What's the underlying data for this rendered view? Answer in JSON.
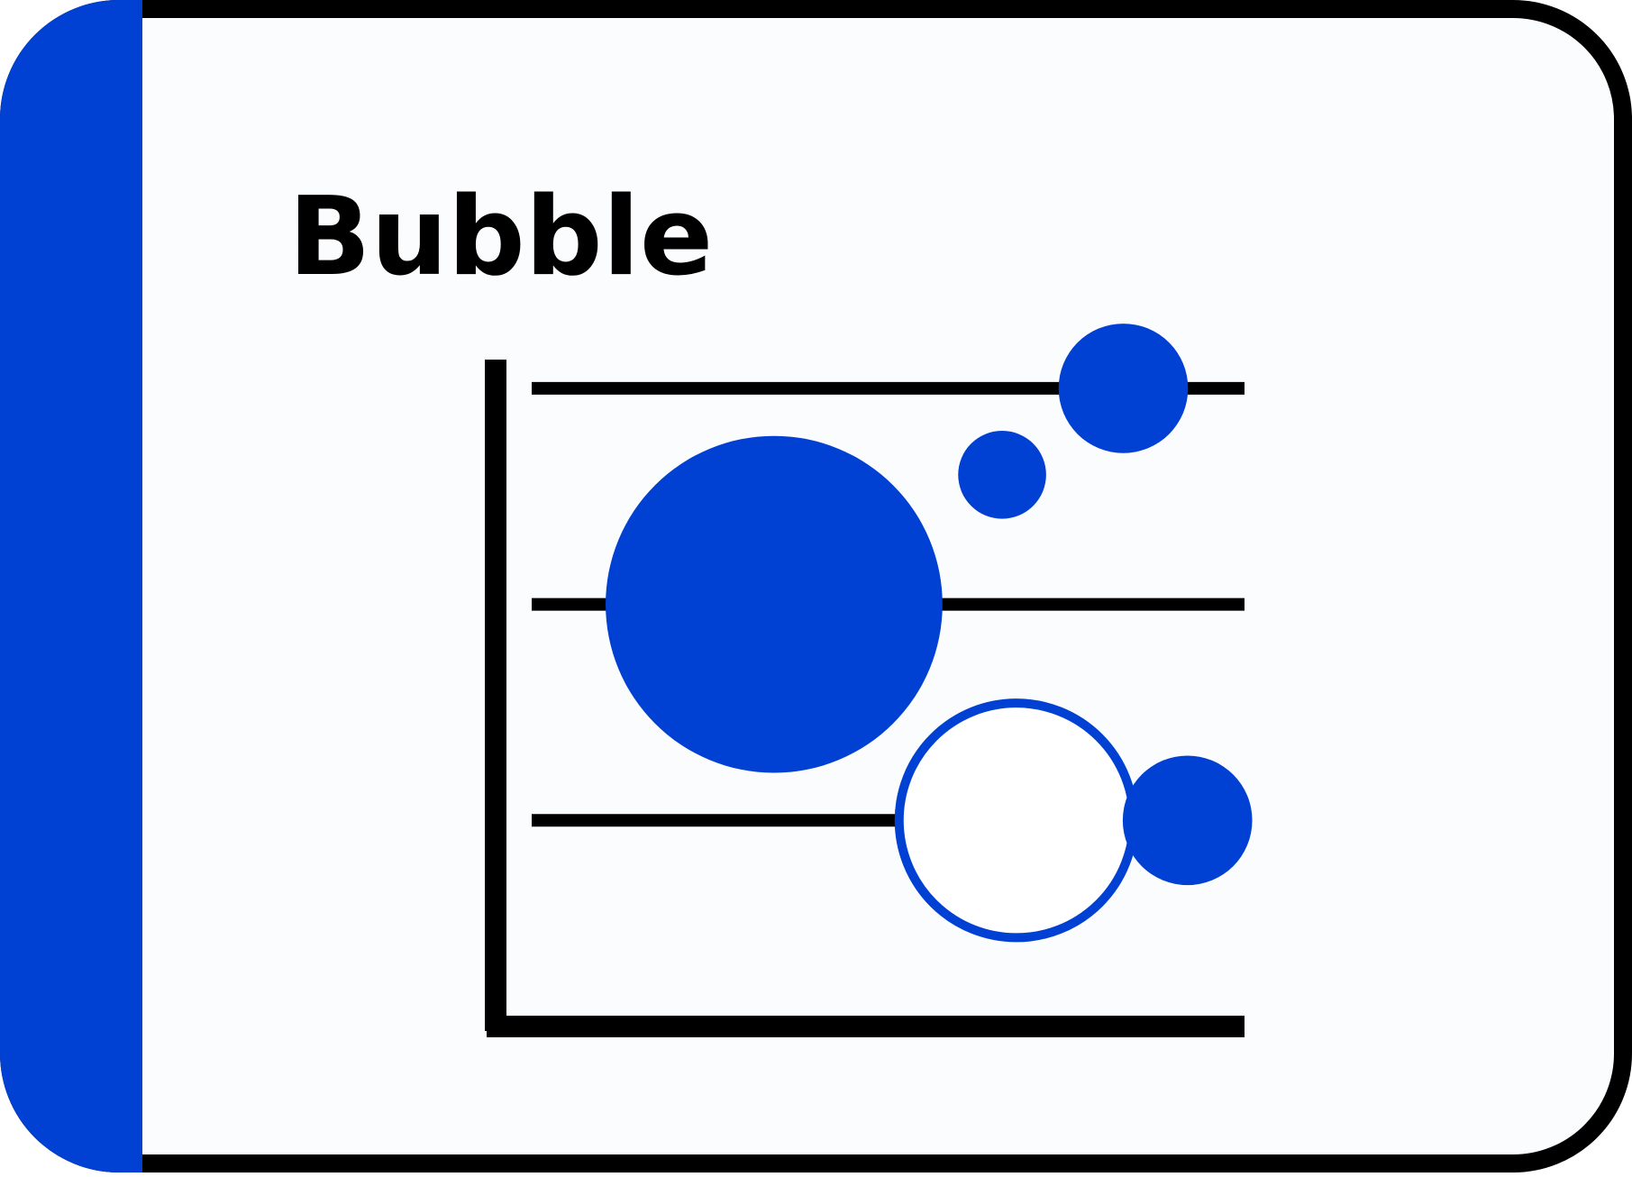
{
  "card": {
    "title": "Bubble"
  },
  "colors": {
    "accent": "#0041d3",
    "stroke": "#000000",
    "background": "#fbfcfd",
    "hollow_fill": "#ffffff"
  },
  "chart_data": {
    "type": "scatter",
    "title": "",
    "xlabel": "",
    "ylabel": "",
    "axis_tick_labels": "none",
    "grid": "horizontal",
    "legend": "none",
    "xlim": [
      0,
      100
    ],
    "ylim": [
      0,
      100
    ],
    "gridlines_y": [
      30,
      60,
      90
    ],
    "points": [
      {
        "x": 83,
        "y": 90,
        "size": 1.3,
        "style": "filled"
      },
      {
        "x": 66,
        "y": 78,
        "size": 0.6,
        "style": "filled"
      },
      {
        "x": 34,
        "y": 60,
        "size": 8.8,
        "style": "filled"
      },
      {
        "x": 68,
        "y": 30,
        "size": 4.6,
        "style": "hollow"
      },
      {
        "x": 92,
        "y": 30,
        "size": 1.3,
        "style": "filled"
      }
    ]
  }
}
